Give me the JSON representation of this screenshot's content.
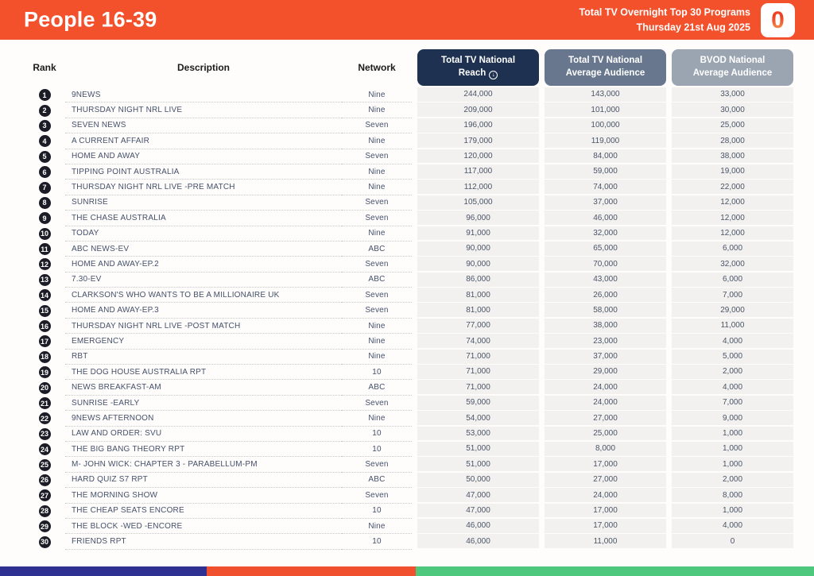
{
  "header": {
    "title": "People 16-39",
    "report_line1": "Total TV Overnight Top 30 Programs",
    "report_line2": "Thursday 21st Aug 2025",
    "logo_glyph": "0",
    "accent_color": "#f2512c"
  },
  "table": {
    "columns": {
      "rank": "Rank",
      "description": "Description",
      "network": "Network",
      "reach": "Total TV National Reach",
      "avg_audience": "Total TV National Average Audience",
      "bvod_audience": "BVOD National Average Audience"
    },
    "sort_icon": "↓",
    "header_colors": {
      "reach": "#1f3150",
      "avg_audience": "#68778e",
      "bvod_audience": "#9ba5b2"
    },
    "rows": [
      {
        "rank": "1",
        "description": "9NEWS",
        "network": "Nine",
        "reach": "244,000",
        "avg_audience": "143,000",
        "bvod_audience": "33,000"
      },
      {
        "rank": "2",
        "description": "THURSDAY NIGHT NRL LIVE",
        "network": "Nine",
        "reach": "209,000",
        "avg_audience": "101,000",
        "bvod_audience": "30,000"
      },
      {
        "rank": "3",
        "description": "SEVEN NEWS",
        "network": "Seven",
        "reach": "196,000",
        "avg_audience": "100,000",
        "bvod_audience": "25,000"
      },
      {
        "rank": "4",
        "description": "A CURRENT AFFAIR",
        "network": "Nine",
        "reach": "179,000",
        "avg_audience": "119,000",
        "bvod_audience": "28,000"
      },
      {
        "rank": "5",
        "description": "HOME AND AWAY",
        "network": "Seven",
        "reach": "120,000",
        "avg_audience": "84,000",
        "bvod_audience": "38,000"
      },
      {
        "rank": "6",
        "description": "TIPPING POINT AUSTRALIA",
        "network": "Nine",
        "reach": "117,000",
        "avg_audience": "59,000",
        "bvod_audience": "19,000"
      },
      {
        "rank": "7",
        "description": "THURSDAY NIGHT NRL LIVE -PRE MATCH",
        "network": "Nine",
        "reach": "112,000",
        "avg_audience": "74,000",
        "bvod_audience": "22,000"
      },
      {
        "rank": "8",
        "description": "SUNRISE",
        "network": "Seven",
        "reach": "105,000",
        "avg_audience": "37,000",
        "bvod_audience": "12,000"
      },
      {
        "rank": "9",
        "description": "THE CHASE AUSTRALIA",
        "network": "Seven",
        "reach": "96,000",
        "avg_audience": "46,000",
        "bvod_audience": "12,000"
      },
      {
        "rank": "10",
        "description": "TODAY",
        "network": "Nine",
        "reach": "91,000",
        "avg_audience": "32,000",
        "bvod_audience": "12,000"
      },
      {
        "rank": "11",
        "description": "ABC NEWS-EV",
        "network": "ABC",
        "reach": "90,000",
        "avg_audience": "65,000",
        "bvod_audience": "6,000"
      },
      {
        "rank": "12",
        "description": "HOME AND AWAY-EP.2",
        "network": "Seven",
        "reach": "90,000",
        "avg_audience": "70,000",
        "bvod_audience": "32,000"
      },
      {
        "rank": "13",
        "description": "7.30-EV",
        "network": "ABC",
        "reach": "86,000",
        "avg_audience": "43,000",
        "bvod_audience": "6,000"
      },
      {
        "rank": "14",
        "description": "CLARKSON'S WHO WANTS TO BE A MILLIONAIRE UK",
        "network": "Seven",
        "reach": "81,000",
        "avg_audience": "26,000",
        "bvod_audience": "7,000"
      },
      {
        "rank": "15",
        "description": "HOME AND AWAY-EP.3",
        "network": "Seven",
        "reach": "81,000",
        "avg_audience": "58,000",
        "bvod_audience": "29,000"
      },
      {
        "rank": "16",
        "description": "THURSDAY NIGHT NRL LIVE -POST MATCH",
        "network": "Nine",
        "reach": "77,000",
        "avg_audience": "38,000",
        "bvod_audience": "11,000"
      },
      {
        "rank": "17",
        "description": "EMERGENCY",
        "network": "Nine",
        "reach": "74,000",
        "avg_audience": "23,000",
        "bvod_audience": "4,000"
      },
      {
        "rank": "18",
        "description": "RBT",
        "network": "Nine",
        "reach": "71,000",
        "avg_audience": "37,000",
        "bvod_audience": "5,000"
      },
      {
        "rank": "19",
        "description": "THE DOG HOUSE AUSTRALIA RPT",
        "network": "10",
        "reach": "71,000",
        "avg_audience": "29,000",
        "bvod_audience": "2,000"
      },
      {
        "rank": "20",
        "description": "NEWS BREAKFAST-AM",
        "network": "ABC",
        "reach": "71,000",
        "avg_audience": "24,000",
        "bvod_audience": "4,000"
      },
      {
        "rank": "21",
        "description": "SUNRISE -EARLY",
        "network": "Seven",
        "reach": "59,000",
        "avg_audience": "24,000",
        "bvod_audience": "7,000"
      },
      {
        "rank": "22",
        "description": "9NEWS AFTERNOON",
        "network": "Nine",
        "reach": "54,000",
        "avg_audience": "27,000",
        "bvod_audience": "9,000"
      },
      {
        "rank": "23",
        "description": "LAW AND ORDER: SVU",
        "network": "10",
        "reach": "53,000",
        "avg_audience": "25,000",
        "bvod_audience": "1,000"
      },
      {
        "rank": "24",
        "description": "THE BIG BANG THEORY RPT",
        "network": "10",
        "reach": "51,000",
        "avg_audience": "8,000",
        "bvod_audience": "1,000"
      },
      {
        "rank": "25",
        "description": "M- JOHN WICK: CHAPTER 3 - PARABELLUM-PM",
        "network": "Seven",
        "reach": "51,000",
        "avg_audience": "17,000",
        "bvod_audience": "1,000"
      },
      {
        "rank": "26",
        "description": "HARD QUIZ S7 RPT",
        "network": "ABC",
        "reach": "50,000",
        "avg_audience": "27,000",
        "bvod_audience": "2,000"
      },
      {
        "rank": "27",
        "description": "THE MORNING SHOW",
        "network": "Seven",
        "reach": "47,000",
        "avg_audience": "24,000",
        "bvod_audience": "8,000"
      },
      {
        "rank": "28",
        "description": "THE CHEAP SEATS ENCORE",
        "network": "10",
        "reach": "47,000",
        "avg_audience": "17,000",
        "bvod_audience": "1,000"
      },
      {
        "rank": "29",
        "description": "THE BLOCK -WED -ENCORE",
        "network": "Nine",
        "reach": "46,000",
        "avg_audience": "17,000",
        "bvod_audience": "4,000"
      },
      {
        "rank": "30",
        "description": "FRIENDS RPT",
        "network": "10",
        "reach": "46,000",
        "avg_audience": "11,000",
        "bvod_audience": "0"
      }
    ]
  },
  "footer": {
    "bar_colors": [
      "#2e3192",
      "#f1502f",
      "#4ec87d"
    ]
  }
}
